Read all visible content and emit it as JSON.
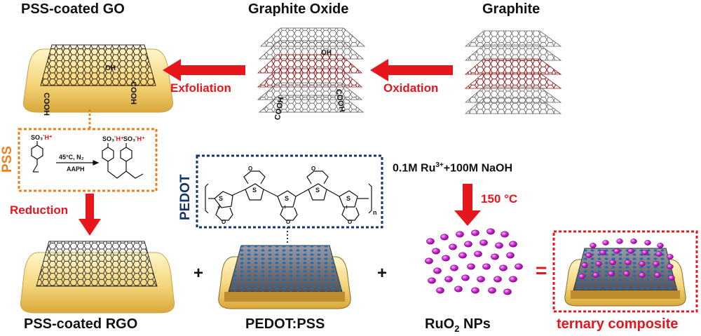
{
  "titles": {
    "pss_go": "PSS-coated GO",
    "graphite_oxide": "Graphite Oxide",
    "graphite": "Graphite",
    "pss_rgo": "PSS-coated RGO",
    "pedot_pss": "PEDOT:PSS",
    "ruo2": "RuO",
    "ruo2_sub": "2",
    "ruo2_suffix": " NPs",
    "ternary": "ternary composite"
  },
  "steps": {
    "exfoliation": "Exfoliation",
    "oxidation": "Oxidation",
    "reduction": "Reduction",
    "temperature": "150 °C"
  },
  "reagent": {
    "prefix": "0.1M Ru",
    "sup": "3+",
    "suffix": "+100M NaOH"
  },
  "labels": {
    "pss": "PSS",
    "pedot": "PEDOT"
  },
  "pss_scheme": {
    "group": "SO₃",
    "minus": "-",
    "proton": "H⁺",
    "cond1": "45°C, N₂",
    "cond2": "AAPH"
  },
  "go_groups": {
    "cooh": "COOH",
    "oh": "OH"
  },
  "pedot_chem": {
    "s": "S",
    "o": "O",
    "plus": "+",
    "n": "n"
  },
  "operators": {
    "plus": "+",
    "equals": "="
  },
  "colors": {
    "arrow": "#e5161c",
    "pss_box": "#f07f1b",
    "pedot_box": "#16336b",
    "ternary_box": "#e5161c",
    "substrate": "#f1d27a",
    "graphene_line": "#2a2a2a",
    "oxide_line": "#8a1a1a",
    "nanoparticle": "#d026d6",
    "pedot_dot": "#1f6fb0"
  }
}
